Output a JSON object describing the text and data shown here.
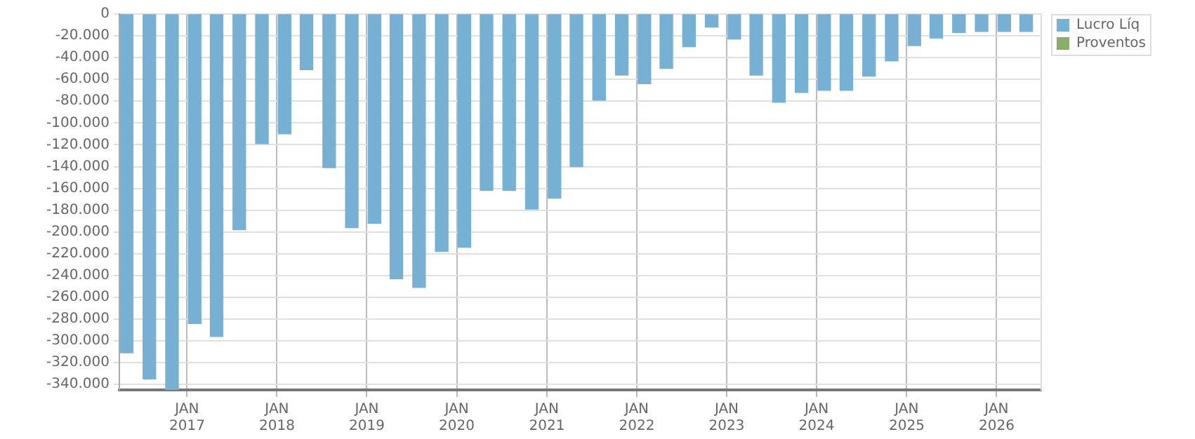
{
  "chart_data": {
    "type": "bar",
    "x": [
      "2016-05",
      "2016-08",
      "2016-11",
      "2017-02",
      "2017-05",
      "2017-08",
      "2017-11",
      "2018-02",
      "2018-05",
      "2018-08",
      "2018-11",
      "2019-02",
      "2019-05",
      "2019-08",
      "2019-11",
      "2020-02",
      "2020-05",
      "2020-08",
      "2020-11",
      "2021-02",
      "2021-05",
      "2021-08",
      "2021-11",
      "2022-02",
      "2022-05",
      "2022-08",
      "2022-11",
      "2023-02",
      "2023-05",
      "2023-08",
      "2023-11",
      "2024-02",
      "2024-05",
      "2024-08",
      "2024-11",
      "2025-02",
      "2025-05",
      "2025-08",
      "2025-11",
      "2026-02",
      "2026-05"
    ],
    "series": [
      {
        "name": "Lucro Líq",
        "color": "#78b0d3",
        "values": [
          -311000,
          -335000,
          -345000,
          -284000,
          -296000,
          -198000,
          -119000,
          -110000,
          -51000,
          -141000,
          -196000,
          -192000,
          -243000,
          -251000,
          -218000,
          -214000,
          -162000,
          -162000,
          -179000,
          -169000,
          -140000,
          -79000,
          -56000,
          -64000,
          -50000,
          -30000,
          -12000,
          -23000,
          -56000,
          -81000,
          -72000,
          -70000,
          -70000,
          -57000,
          -43000,
          -29000,
          -22000,
          -17000,
          -16000,
          -16000,
          -16000
        ]
      },
      {
        "name": "Proventos",
        "color": "#8aad6c",
        "values": [
          null,
          null,
          null,
          null,
          null,
          null,
          null,
          null,
          null,
          null,
          null,
          null,
          null,
          null,
          null,
          null,
          null,
          null,
          null,
          null,
          null,
          null,
          null,
          null,
          null,
          null,
          null,
          null,
          null,
          null,
          null,
          null,
          null,
          null,
          null,
          null,
          null,
          null,
          null,
          null,
          null
        ]
      }
    ],
    "xlim": [
      "2016-04-01",
      "2026-07-01"
    ],
    "xticks": [
      {
        "value": "2017-01-01",
        "label": "JAN 2017"
      },
      {
        "value": "2018-01-01",
        "label": "JAN 2018"
      },
      {
        "value": "2019-01-01",
        "label": "JAN 2019"
      },
      {
        "value": "2020-01-01",
        "label": "JAN 2020"
      },
      {
        "value": "2021-01-01",
        "label": "JAN 2021"
      },
      {
        "value": "2022-01-01",
        "label": "JAN 2022"
      },
      {
        "value": "2023-01-01",
        "label": "JAN 2023"
      },
      {
        "value": "2024-01-01",
        "label": "JAN 2024"
      },
      {
        "value": "2025-01-01",
        "label": "JAN 2025"
      },
      {
        "value": "2026-01-01",
        "label": "JAN 2026"
      }
    ],
    "ylim": [
      -345000,
      0
    ],
    "yticks": [
      0,
      {
        "value": -20000,
        "label": "-20.000"
      },
      {
        "value": -40000,
        "label": "-40.000"
      },
      {
        "value": -60000,
        "label": "-60.000"
      },
      {
        "value": -80000,
        "label": "-80.000"
      },
      {
        "value": -100000,
        "label": "-100.000"
      },
      {
        "value": -120000,
        "label": "-120.000"
      },
      {
        "value": -140000,
        "label": "-140.000"
      },
      {
        "value": -160000,
        "label": "-160.000"
      },
      {
        "value": -180000,
        "label": "-180.000"
      },
      {
        "value": -200000,
        "label": "-200.000"
      },
      {
        "value": -220000,
        "label": "-220.000"
      },
      {
        "value": -240000,
        "label": "-240.000"
      },
      {
        "value": -260000,
        "label": "-260.000"
      },
      {
        "value": -280000,
        "label": "-280.000"
      },
      {
        "value": -300000,
        "label": "-300.000"
      },
      {
        "value": -320000,
        "label": "-320.000"
      },
      {
        "value": -340000,
        "label": "-340.000"
      }
    ],
    "grid": true,
    "legend": "top right"
  }
}
